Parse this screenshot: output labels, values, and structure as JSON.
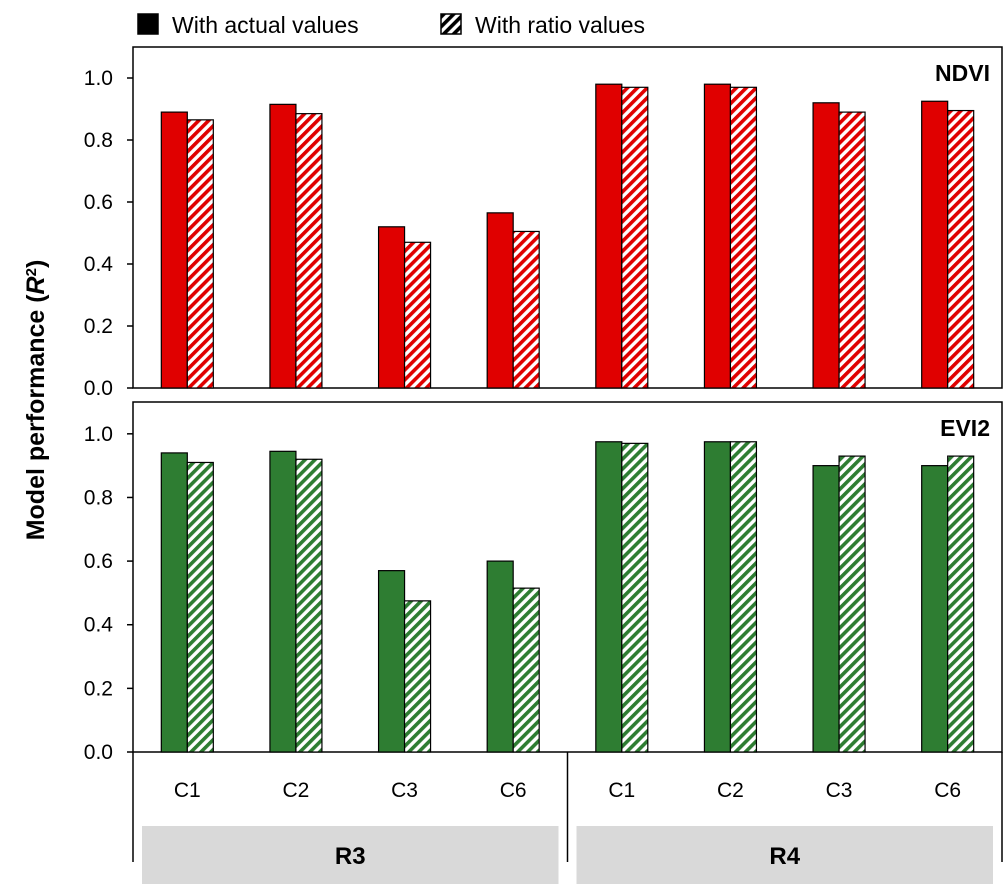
{
  "chart_data": {
    "type": "bar",
    "ylabel": "Model performance (R²)",
    "ylabel_parts": {
      "main": "Model performance (",
      "italic": "R",
      "sup": "2",
      "close": ")"
    },
    "ylim": [
      0,
      1.1
    ],
    "yticks": [
      "0.0",
      "0.2",
      "0.4",
      "0.6",
      "0.8",
      "1.0"
    ],
    "ytick_values": [
      0,
      0.2,
      0.4,
      0.6,
      0.8,
      1.0
    ],
    "grid": false,
    "legend_position": "top",
    "categories": [
      "C1",
      "C2",
      "C3",
      "C6",
      "C1",
      "C2",
      "C3",
      "C6"
    ],
    "groups": [
      {
        "label": "R3",
        "categories": [
          "C1",
          "C2",
          "C3",
          "C6"
        ]
      },
      {
        "label": "R4",
        "categories": [
          "C1",
          "C2",
          "C3",
          "C6"
        ]
      }
    ],
    "legend": [
      {
        "label": "With actual values",
        "style": "solid"
      },
      {
        "label": "With ratio values",
        "style": "hatched"
      }
    ],
    "panels": [
      {
        "title": "NDVI",
        "color": "#e00000",
        "series": [
          {
            "name": "With actual values",
            "values": [
              0.89,
              0.915,
              0.52,
              0.565,
              0.98,
              0.98,
              0.92,
              0.925
            ]
          },
          {
            "name": "With ratio values",
            "values": [
              0.865,
              0.885,
              0.47,
              0.505,
              0.97,
              0.97,
              0.89,
              0.895
            ]
          }
        ]
      },
      {
        "title": "EVI2",
        "color": "#2e7d32",
        "series": [
          {
            "name": "With actual values",
            "values": [
              0.94,
              0.945,
              0.57,
              0.6,
              0.975,
              0.975,
              0.9,
              0.9
            ]
          },
          {
            "name": "With ratio values",
            "values": [
              0.91,
              0.92,
              0.475,
              0.515,
              0.97,
              0.975,
              0.93,
              0.93
            ]
          }
        ]
      }
    ]
  }
}
